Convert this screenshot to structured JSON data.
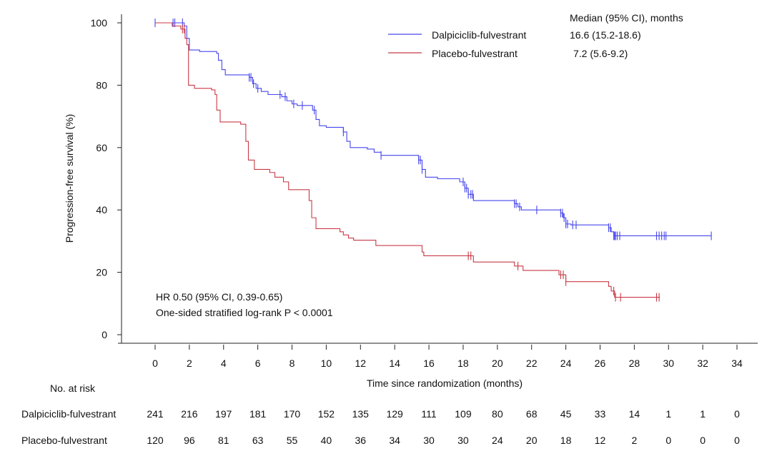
{
  "chart_data": {
    "type": "line",
    "subtype": "kaplan-meier",
    "xlabel": "Time since randomization (months)",
    "ylabel": "Progression-free survival (%)",
    "xlim": [
      0,
      34
    ],
    "ylim": [
      0,
      100
    ],
    "xticks": [
      0,
      2,
      4,
      6,
      8,
      10,
      12,
      14,
      16,
      18,
      20,
      22,
      24,
      26,
      28,
      30,
      32,
      34
    ],
    "yticks": [
      0,
      20,
      40,
      60,
      80,
      100
    ],
    "grid": false,
    "legend_position": "top-right",
    "legend_header": "Median (95% CI), months",
    "annotations": [
      "HR 0.50 (95% CI, 0.39-0.65)",
      "One-sided stratified log-rank P < 0.0001"
    ],
    "series": [
      {
        "name": "Dalpiciclib-fulvestrant",
        "median": "16.6 (15.2-18.6)",
        "color": "#4646ee",
        "steps": [
          [
            0,
            100
          ],
          [
            1.7,
            99
          ],
          [
            1.85,
            95
          ],
          [
            2.0,
            91.3
          ],
          [
            2.6,
            90.8
          ],
          [
            3.6,
            90.2
          ],
          [
            3.7,
            88
          ],
          [
            3.9,
            85
          ],
          [
            4.1,
            83.3
          ],
          [
            5.5,
            82.5
          ],
          [
            5.7,
            80.5
          ],
          [
            5.9,
            79
          ],
          [
            6.2,
            78
          ],
          [
            6.6,
            77
          ],
          [
            7.4,
            76.3
          ],
          [
            7.7,
            75
          ],
          [
            8.0,
            74
          ],
          [
            8.3,
            73.5
          ],
          [
            9.2,
            72
          ],
          [
            9.4,
            69
          ],
          [
            9.6,
            67
          ],
          [
            10.0,
            66.5
          ],
          [
            11.0,
            65
          ],
          [
            11.2,
            62
          ],
          [
            11.4,
            60
          ],
          [
            12.4,
            59.5
          ],
          [
            12.8,
            58.5
          ],
          [
            13.2,
            57.5
          ],
          [
            15.4,
            56
          ],
          [
            15.6,
            53
          ],
          [
            15.8,
            50.5
          ],
          [
            16.5,
            50
          ],
          [
            17.8,
            49
          ],
          [
            18.1,
            47
          ],
          [
            18.3,
            45
          ],
          [
            18.6,
            43
          ],
          [
            21.0,
            42
          ],
          [
            21.2,
            41
          ],
          [
            21.4,
            40
          ],
          [
            23.7,
            39
          ],
          [
            23.85,
            37.5
          ],
          [
            24.0,
            35.5
          ],
          [
            24.3,
            35.2
          ],
          [
            26.5,
            34.3
          ],
          [
            26.65,
            33
          ],
          [
            26.8,
            31.7
          ]
        ],
        "end": 32.5,
        "censored": [
          0,
          1.05,
          1.15,
          1.6,
          5.5,
          5.6,
          5.75,
          6.0,
          7.3,
          7.6,
          8.1,
          8.6,
          9.3,
          11.0,
          13.2,
          15.4,
          15.5,
          15.6,
          18.0,
          18.1,
          18.2,
          18.3,
          18.45,
          18.55,
          21.0,
          21.1,
          21.3,
          22.3,
          23.7,
          23.8,
          23.9,
          24.0,
          24.1,
          24.4,
          24.6,
          26.5,
          26.6,
          26.8,
          26.85,
          26.9,
          27.0,
          27.15,
          29.3,
          29.45,
          29.6,
          29.75,
          29.85,
          32.5
        ],
        "at_risk": [
          241,
          216,
          197,
          181,
          170,
          152,
          135,
          129,
          111,
          109,
          80,
          68,
          45,
          33,
          14,
          1,
          1,
          0
        ]
      },
      {
        "name": "Placebo-fulvestrant",
        "median": "7.2 (5.6-9.2)",
        "color": "#c83a46",
        "steps": [
          [
            0,
            100
          ],
          [
            1.0,
            99
          ],
          [
            1.5,
            98
          ],
          [
            1.75,
            95
          ],
          [
            1.85,
            93
          ],
          [
            1.95,
            80
          ],
          [
            2.3,
            79
          ],
          [
            3.3,
            78.5
          ],
          [
            3.5,
            77
          ],
          [
            3.6,
            72
          ],
          [
            3.8,
            68.2
          ],
          [
            5.0,
            67.5
          ],
          [
            5.3,
            62
          ],
          [
            5.45,
            56
          ],
          [
            5.8,
            53
          ],
          [
            6.7,
            52
          ],
          [
            7.0,
            50.5
          ],
          [
            7.5,
            49
          ],
          [
            7.8,
            46.5
          ],
          [
            9.0,
            43
          ],
          [
            9.15,
            37.5
          ],
          [
            9.4,
            34
          ],
          [
            10.8,
            33
          ],
          [
            11.0,
            32
          ],
          [
            11.3,
            31
          ],
          [
            11.6,
            30.3
          ],
          [
            12.9,
            28.6
          ],
          [
            15.6,
            26.5
          ],
          [
            15.7,
            25.3
          ],
          [
            18.6,
            23.3
          ],
          [
            21.0,
            22
          ],
          [
            21.5,
            20.6
          ],
          [
            23.6,
            19.2
          ],
          [
            24.0,
            17
          ],
          [
            26.5,
            15.5
          ],
          [
            26.65,
            14
          ],
          [
            26.85,
            12
          ]
        ],
        "end": 29.5,
        "censored": [
          1.6,
          1.7,
          18.3,
          18.45,
          21.2,
          23.7,
          23.85,
          24.0,
          26.8,
          26.9,
          27.2,
          29.3,
          29.45
        ],
        "at_risk": [
          120,
          96,
          81,
          63,
          55,
          40,
          36,
          34,
          30,
          30,
          24,
          20,
          18,
          12,
          2,
          0,
          0,
          0
        ]
      }
    ],
    "at_risk_title": "No. at risk"
  }
}
